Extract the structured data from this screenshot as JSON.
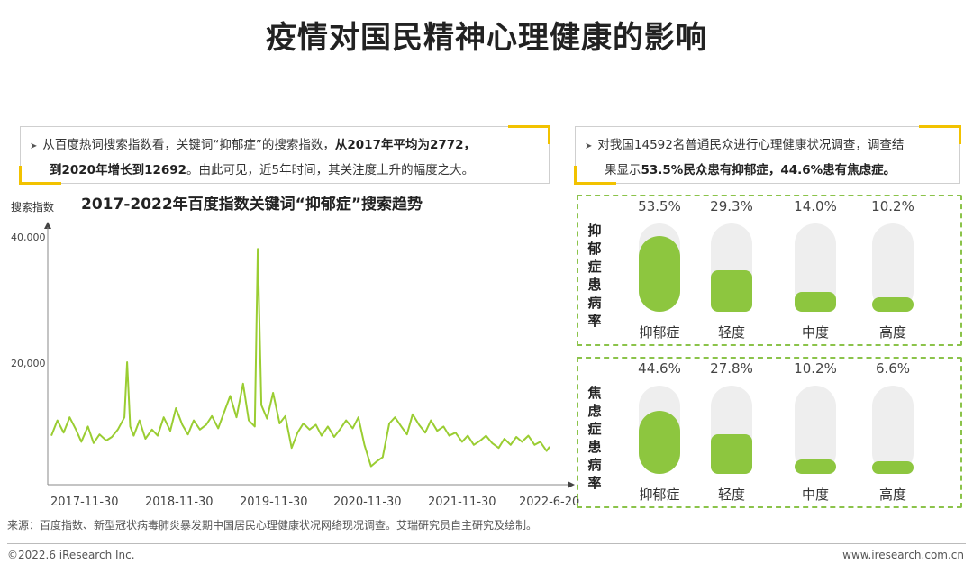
{
  "page_title": "疫情对国民精神心理健康的影响",
  "left_callout": {
    "text_plain_1": "从百度热词搜索指数看，关键词“抑郁症”的搜索指数，",
    "text_bold_1": "从2017年平均为2772，",
    "text_bold_2": "到2020年增长到12692",
    "text_plain_2": "。由此可见，近5年时间，其关注度上升的幅度之大。"
  },
  "right_callout": {
    "text_plain_1": "对我国14592名普通民众进行心理健康状况调查，调查结",
    "text_plain_2": "果显示",
    "text_bold_1": "53.5%民众患有抑郁症，44.6%患有焦虑症。"
  },
  "colors": {
    "accent": "#f2c200",
    "series": "#9acd32",
    "fill": "#8dc63f"
  },
  "chart_data": [
    {
      "type": "line",
      "title": "2017-2022年百度指数关键词“抑郁症”搜索趋势",
      "ylabel": "搜索指数",
      "xlabel": "",
      "ylim": [
        0,
        40000
      ],
      "yticks": [
        "40,000",
        "20,000"
      ],
      "xticks": [
        "2017-11-30",
        "2018-11-30",
        "2019-11-30",
        "2020-11-30",
        "2021-11-30",
        "2022-6-20"
      ],
      "series": [
        {
          "name": "",
          "x": [
            "2017-11-30",
            "2017-12-20",
            "2018-01-10",
            "2018-01-30",
            "2018-02-20",
            "2018-03-10",
            "2018-04-01",
            "2018-04-20",
            "2018-05-10",
            "2018-06-01",
            "2018-06-20",
            "2018-07-10",
            "2018-08-01",
            "2018-08-10",
            "2018-08-20",
            "2018-09-01",
            "2018-09-20",
            "2018-10-10",
            "2018-11-01",
            "2018-11-20",
            "2018-12-10",
            "2019-01-01",
            "2019-01-20",
            "2019-02-10",
            "2019-03-01",
            "2019-03-20",
            "2019-04-10",
            "2019-05-01",
            "2019-05-20",
            "2019-06-10",
            "2019-07-01",
            "2019-07-20",
            "2019-08-10",
            "2019-09-01",
            "2019-09-20",
            "2019-10-10",
            "2019-10-20",
            "2019-11-01",
            "2019-11-20",
            "2019-12-10",
            "2020-01-01",
            "2020-01-20",
            "2020-02-10",
            "2020-03-01",
            "2020-03-20",
            "2020-04-10",
            "2020-05-01",
            "2020-05-20",
            "2020-06-10",
            "2020-07-01",
            "2020-07-20",
            "2020-08-10",
            "2020-09-01",
            "2020-09-20",
            "2020-10-10",
            "2020-11-01",
            "2020-11-20",
            "2020-12-10",
            "2021-01-01",
            "2021-01-20",
            "2021-02-10",
            "2021-03-01",
            "2021-03-20",
            "2021-04-10",
            "2021-05-01",
            "2021-05-20",
            "2021-06-10",
            "2021-07-01",
            "2021-07-20",
            "2021-08-10",
            "2021-09-01",
            "2021-09-20",
            "2021-10-10",
            "2021-11-01",
            "2021-11-20",
            "2021-12-10",
            "2022-01-01",
            "2022-01-20",
            "2022-02-10",
            "2022-03-01",
            "2022-03-20",
            "2022-04-10",
            "2022-05-01",
            "2022-05-20",
            "2022-06-10",
            "2022-06-20"
          ],
          "values": [
            8000,
            10500,
            8500,
            11000,
            9000,
            7000,
            9500,
            6800,
            8200,
            7200,
            7800,
            9000,
            11000,
            20000,
            9500,
            8000,
            10500,
            7500,
            9000,
            8000,
            11000,
            8800,
            12500,
            9800,
            8200,
            10500,
            9000,
            9800,
            11200,
            9200,
            12000,
            14500,
            11000,
            16500,
            10500,
            9500,
            38500,
            13000,
            10800,
            15000,
            10000,
            11200,
            6000,
            8500,
            10000,
            9000,
            9800,
            8000,
            9500,
            7800,
            9000,
            10500,
            9200,
            11000,
            6500,
            3000,
            3800,
            4500,
            10000,
            11000,
            9500,
            8200,
            11500,
            9800,
            8500,
            10500,
            8800,
            9500,
            8000,
            8500,
            7000,
            8000,
            6500,
            7200,
            8000,
            6800,
            6000,
            7500,
            6500,
            7800,
            7000,
            8000,
            6500,
            7000,
            5500,
            6200
          ]
        }
      ]
    },
    {
      "type": "bar",
      "title": "抑郁症患病率",
      "categories": [
        "抑郁症",
        "轻度",
        "中度",
        "高度"
      ],
      "values": [
        53.5,
        29.3,
        14.0,
        10.2
      ],
      "value_labels": [
        "53.5%",
        "29.3%",
        "14.0%",
        "10.2%"
      ]
    },
    {
      "type": "bar",
      "title": "焦虑症患病率",
      "categories": [
        "抑郁症",
        "轻度",
        "中度",
        "高度"
      ],
      "values": [
        44.6,
        27.8,
        10.2,
        6.6
      ],
      "value_labels": [
        "44.6%",
        "27.8%",
        "10.2%",
        "6.6%"
      ]
    }
  ],
  "source_note": "来源：百度指数、新型冠状病毒肺炎暴发期中国居民心理健康状况网络现况调查。艾瑞研究员自主研究及绘制。",
  "footer": {
    "left": "©2022.6 iResearch Inc.",
    "right": "www.iresearch.com.cn"
  }
}
